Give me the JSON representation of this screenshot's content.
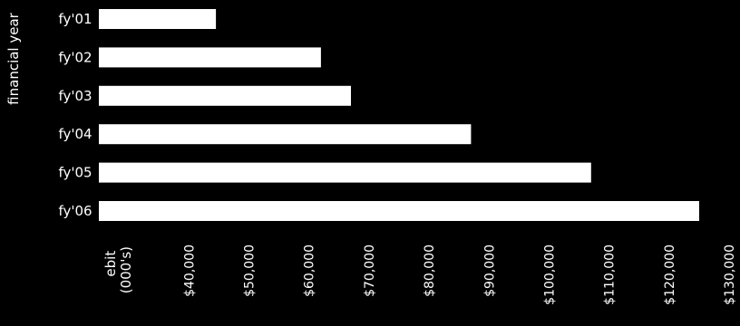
{
  "chart_data": {
    "type": "bar",
    "orientation": "horizontal",
    "categories": [
      "fy'01",
      "fy'02",
      "fy'03",
      "fy'04",
      "fy'05",
      "fy'06"
    ],
    "values": [
      44500,
      62000,
      67000,
      87000,
      107000,
      125000
    ],
    "ylabel": "financial year",
    "xlabel": "ebit\n(000's)",
    "xlim": [
      25000,
      130000
    ],
    "xticks": [
      40000,
      50000,
      60000,
      70000,
      80000,
      90000,
      100000,
      110000,
      120000,
      130000
    ],
    "xtick_labels": [
      "$40,000",
      "$50,000",
      "$60,000",
      "$70,000",
      "$80,000",
      "$90,000",
      "$100,000",
      "$110,000",
      "$120,000",
      "$130,000"
    ],
    "grid": false,
    "legend": "none"
  },
  "colors": {
    "background": "#000000",
    "bar": "#ffffff",
    "text": "#ffffff"
  }
}
